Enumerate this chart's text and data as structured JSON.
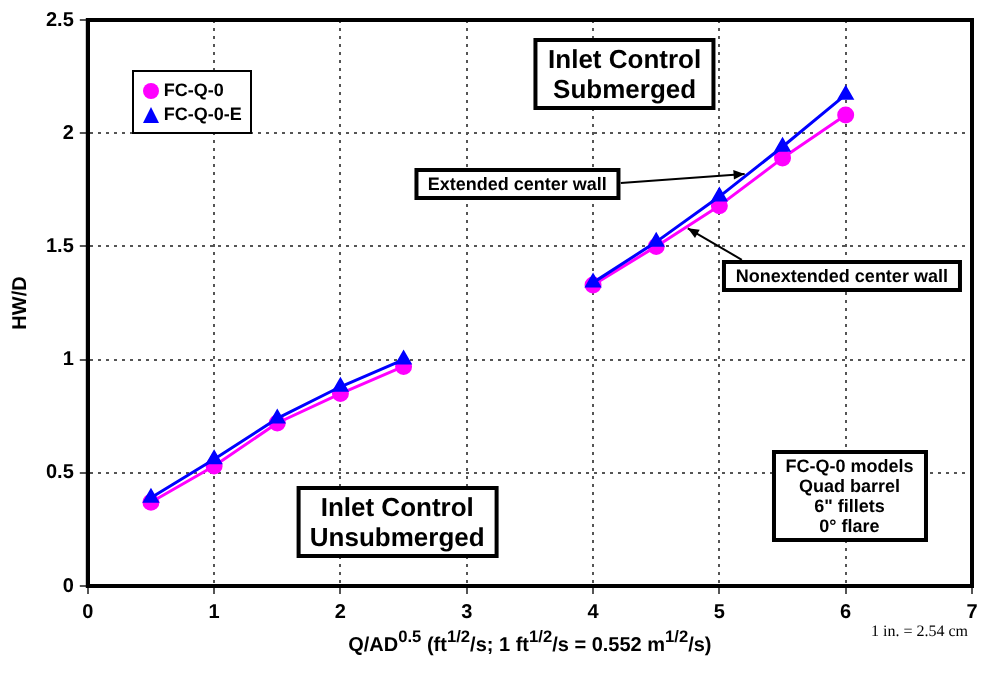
{
  "chart_data": {
    "type": "line",
    "xlabel": "Q/AD$^{0.5}$ (ft$^{1/2}$/s; 1 ft$^{1/2}$/s = 0.552 m$^{1/2}$/s)",
    "ylabel": "HW/D",
    "x": [
      0.5,
      1,
      1.5,
      2,
      2.5,
      3,
      4,
      4.5,
      5,
      5.5,
      6
    ],
    "series": [
      {
        "name": "FC-Q-0",
        "color": "#ff00ff",
        "marker": "circle",
        "values": [
          0.37,
          0.53,
          0.72,
          0.85,
          0.97,
          null,
          1.33,
          1.5,
          1.68,
          1.89,
          2.08
        ]
      },
      {
        "name": "FC-Q-0-E",
        "color": "#0000ff",
        "marker": "triangle",
        "values": [
          0.39,
          0.56,
          0.74,
          0.88,
          1.0,
          null,
          1.34,
          1.52,
          1.72,
          1.94,
          2.17
        ]
      }
    ],
    "xlim": [
      0,
      7
    ],
    "xticks": [
      0,
      1,
      2,
      3,
      4,
      5,
      6,
      7
    ],
    "ylim": [
      0,
      2.5
    ],
    "yticks": [
      0,
      0.5,
      1,
      1.5,
      2,
      2.5
    ],
    "grid": true,
    "legend": "top left",
    "line_style": "solid",
    "annotations": [
      "Inlet Control\nSubmerged",
      {
        "text": "Extended center wall",
        "x": 5.2,
        "y": 1.82
      },
      {
        "text": "Nonextended center wall",
        "x": 4.75,
        "y": 1.58
      },
      "Inlet Control\nUnsubmerged",
      "FC-Q-0 models\nQuad barrel\n6\" fillets\n0° flare",
      "1 in. = 2.54 cm"
    ]
  }
}
